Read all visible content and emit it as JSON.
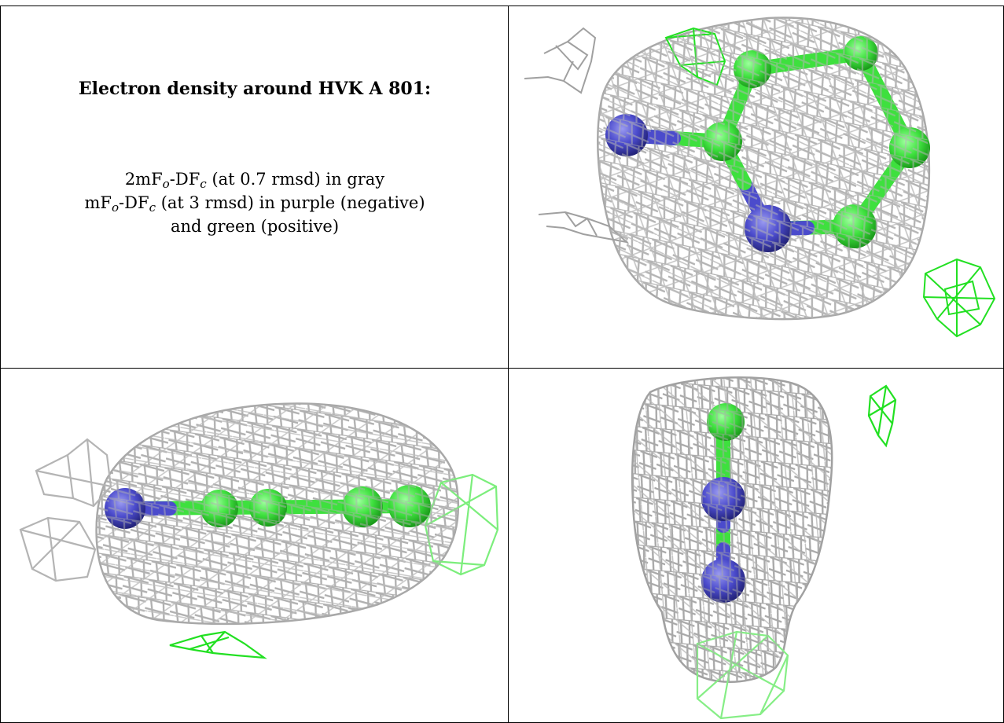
{
  "caption": {
    "title": "Electron density around HVK A 801:",
    "line1": {
      "prefix": "2mF",
      "sub1": "o",
      "mid": "-DF",
      "sub2": "c",
      "suffix": " (at 0.7 rmsd) in gray"
    },
    "line2": {
      "prefix": "mF",
      "sub1": "o",
      "mid": "-DF",
      "sub2": "c",
      "suffix": " (at 3 rmsd) in purple (negative)"
    },
    "line3": "and green (positive)"
  },
  "colors": {
    "mesh_gray": "#b0b0b0",
    "positive_green": "#22e022",
    "carbon_green": "#3ee03e",
    "nitrogen_blue": "#4b4bcc",
    "border": "#000000"
  },
  "panels": [
    {
      "view": "top view"
    },
    {
      "view": "side view"
    },
    {
      "view": "end view"
    }
  ]
}
